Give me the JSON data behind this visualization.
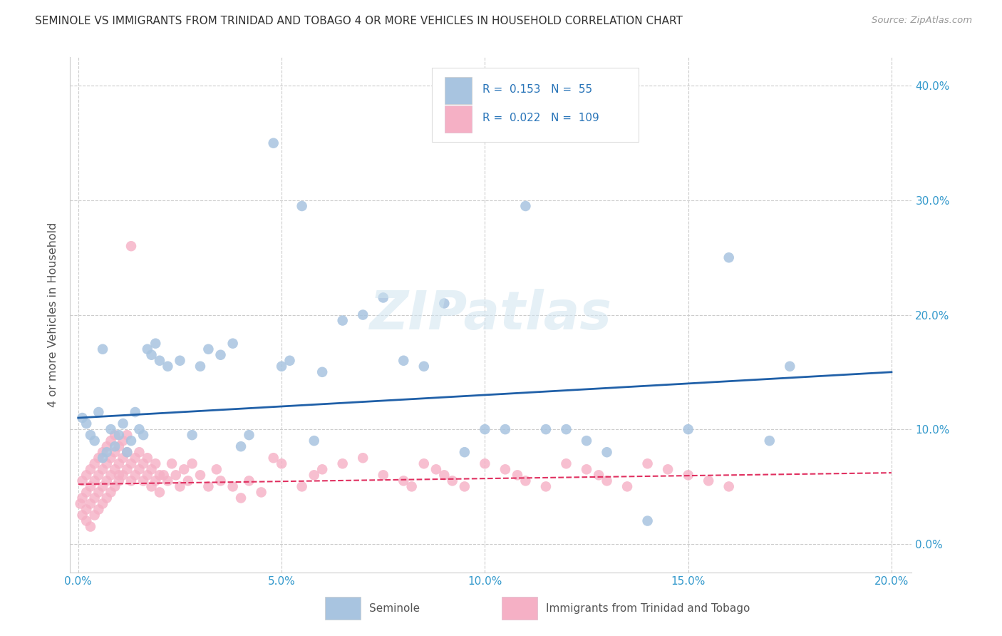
{
  "title": "SEMINOLE VS IMMIGRANTS FROM TRINIDAD AND TOBAGO 4 OR MORE VEHICLES IN HOUSEHOLD CORRELATION CHART",
  "source": "Source: ZipAtlas.com",
  "ylabel": "4 or more Vehicles in Household",
  "xlabel_ticks": [
    "0.0%",
    "5.0%",
    "10.0%",
    "15.0%",
    "20.0%"
  ],
  "xlabel_vals": [
    0.0,
    0.05,
    0.1,
    0.15,
    0.2
  ],
  "ylabel_ticks": [
    "0.0%",
    "10.0%",
    "20.0%",
    "30.0%",
    "40.0%"
  ],
  "ylabel_vals": [
    0.0,
    0.1,
    0.2,
    0.3,
    0.4
  ],
  "xlim": [
    -0.002,
    0.205
  ],
  "ylim": [
    -0.025,
    0.425
  ],
  "series1_label": "Seminole",
  "series1_R": "0.153",
  "series1_N": "55",
  "series1_color": "#a8c4e0",
  "series1_line_color": "#2060a8",
  "series2_label": "Immigrants from Trinidad and Tobago",
  "series2_R": "0.022",
  "series2_N": "109",
  "series2_color": "#f5b0c5",
  "series2_line_color": "#e03060",
  "watermark": "ZIPatlas",
  "seminole_x": [
    0.001,
    0.002,
    0.003,
    0.004,
    0.005,
    0.006,
    0.006,
    0.007,
    0.008,
    0.009,
    0.01,
    0.011,
    0.012,
    0.013,
    0.014,
    0.015,
    0.016,
    0.017,
    0.018,
    0.019,
    0.02,
    0.022,
    0.025,
    0.028,
    0.03,
    0.032,
    0.035,
    0.038,
    0.04,
    0.042,
    0.048,
    0.05,
    0.052,
    0.055,
    0.058,
    0.06,
    0.065,
    0.07,
    0.075,
    0.08,
    0.085,
    0.09,
    0.095,
    0.1,
    0.105,
    0.11,
    0.115,
    0.12,
    0.125,
    0.13,
    0.14,
    0.15,
    0.16,
    0.17,
    0.175
  ],
  "seminole_y": [
    0.11,
    0.105,
    0.095,
    0.09,
    0.115,
    0.075,
    0.17,
    0.08,
    0.1,
    0.085,
    0.095,
    0.105,
    0.08,
    0.09,
    0.115,
    0.1,
    0.095,
    0.17,
    0.165,
    0.175,
    0.16,
    0.155,
    0.16,
    0.095,
    0.155,
    0.17,
    0.165,
    0.175,
    0.085,
    0.095,
    0.35,
    0.155,
    0.16,
    0.295,
    0.09,
    0.15,
    0.195,
    0.2,
    0.215,
    0.16,
    0.155,
    0.21,
    0.08,
    0.1,
    0.1,
    0.295,
    0.1,
    0.1,
    0.09,
    0.08,
    0.02,
    0.1,
    0.25,
    0.09,
    0.155
  ],
  "tt_x": [
    0.0005,
    0.001,
    0.001,
    0.001,
    0.002,
    0.002,
    0.002,
    0.002,
    0.003,
    0.003,
    0.003,
    0.003,
    0.004,
    0.004,
    0.004,
    0.004,
    0.005,
    0.005,
    0.005,
    0.005,
    0.006,
    0.006,
    0.006,
    0.006,
    0.007,
    0.007,
    0.007,
    0.007,
    0.008,
    0.008,
    0.008,
    0.008,
    0.009,
    0.009,
    0.009,
    0.009,
    0.01,
    0.01,
    0.01,
    0.01,
    0.011,
    0.011,
    0.011,
    0.012,
    0.012,
    0.012,
    0.013,
    0.013,
    0.013,
    0.014,
    0.014,
    0.015,
    0.015,
    0.016,
    0.016,
    0.017,
    0.017,
    0.018,
    0.018,
    0.019,
    0.019,
    0.02,
    0.02,
    0.021,
    0.022,
    0.023,
    0.024,
    0.025,
    0.026,
    0.027,
    0.028,
    0.03,
    0.032,
    0.034,
    0.035,
    0.038,
    0.04,
    0.042,
    0.045,
    0.048,
    0.05,
    0.055,
    0.058,
    0.06,
    0.065,
    0.07,
    0.075,
    0.08,
    0.082,
    0.085,
    0.088,
    0.09,
    0.092,
    0.095,
    0.1,
    0.105,
    0.108,
    0.11,
    0.115,
    0.12,
    0.125,
    0.128,
    0.13,
    0.135,
    0.14,
    0.145,
    0.15,
    0.155,
    0.16
  ],
  "tt_y": [
    0.035,
    0.04,
    0.025,
    0.055,
    0.045,
    0.03,
    0.06,
    0.02,
    0.05,
    0.035,
    0.065,
    0.015,
    0.055,
    0.04,
    0.07,
    0.025,
    0.06,
    0.045,
    0.075,
    0.03,
    0.065,
    0.05,
    0.08,
    0.035,
    0.07,
    0.055,
    0.085,
    0.04,
    0.075,
    0.06,
    0.09,
    0.045,
    0.08,
    0.065,
    0.095,
    0.05,
    0.085,
    0.07,
    0.06,
    0.055,
    0.075,
    0.06,
    0.09,
    0.08,
    0.065,
    0.095,
    0.07,
    0.055,
    0.26,
    0.06,
    0.075,
    0.065,
    0.08,
    0.055,
    0.07,
    0.06,
    0.075,
    0.05,
    0.065,
    0.055,
    0.07,
    0.045,
    0.06,
    0.06,
    0.055,
    0.07,
    0.06,
    0.05,
    0.065,
    0.055,
    0.07,
    0.06,
    0.05,
    0.065,
    0.055,
    0.05,
    0.04,
    0.055,
    0.045,
    0.075,
    0.07,
    0.05,
    0.06,
    0.065,
    0.07,
    0.075,
    0.06,
    0.055,
    0.05,
    0.07,
    0.065,
    0.06,
    0.055,
    0.05,
    0.07,
    0.065,
    0.06,
    0.055,
    0.05,
    0.07,
    0.065,
    0.06,
    0.055,
    0.05,
    0.07,
    0.065,
    0.06,
    0.055,
    0.05
  ]
}
